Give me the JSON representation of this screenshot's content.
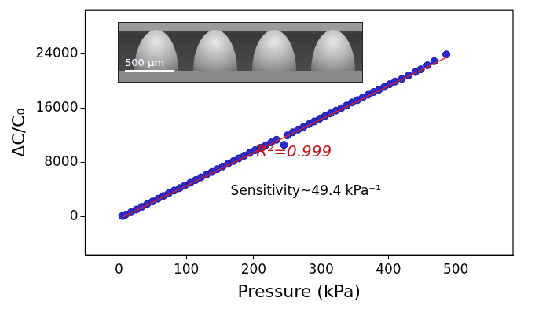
{
  "chart_data": {
    "type": "scatter",
    "x_label": "Pressure (kPa)",
    "y_label": "ΔC/C₀",
    "xlim": [
      -50,
      585
    ],
    "xticks": [
      0,
      100,
      200,
      300,
      400,
      500
    ],
    "ylim": [
      -5700,
      30400
    ],
    "yticks": [
      0,
      8000,
      16000,
      24000
    ],
    "grid": false,
    "annotations": [
      {
        "text": "R²=0.999",
        "color": "#c0141c"
      },
      {
        "text": "Sensitivity~49.4 kPa⁻¹",
        "color": "#000000"
      }
    ],
    "inset": {
      "scale_label": "500 µm"
    },
    "series": [
      {
        "type": "scatter",
        "color": "#2b2bd6",
        "marker": "circle",
        "x": [
          5,
          10,
          18,
          26,
          34,
          42,
          50,
          58,
          66,
          74,
          82,
          90,
          98,
          106,
          114,
          122,
          130,
          138,
          146,
          154,
          162,
          170,
          178,
          186,
          194,
          202,
          210,
          218,
          226,
          234,
          245,
          250,
          258,
          266,
          274,
          282,
          290,
          298,
          306,
          314,
          322,
          330,
          338,
          346,
          354,
          362,
          370,
          378,
          386,
          394,
          402,
          410,
          420,
          430,
          440,
          448,
          458,
          468,
          486
        ],
        "values": [
          50,
          250,
          600,
          1000,
          1400,
          1800,
          2200,
          2600,
          3000,
          3400,
          3800,
          4150,
          4550,
          4950,
          5350,
          5750,
          6150,
          6550,
          6950,
          7350,
          7750,
          8150,
          8550,
          8950,
          9350,
          9750,
          10100,
          10500,
          10900,
          11300,
          10550,
          11950,
          12400,
          12800,
          13200,
          13600,
          14000,
          14400,
          14800,
          15200,
          15600,
          15950,
          16350,
          16800,
          17150,
          17550,
          17950,
          18350,
          18700,
          19100,
          19500,
          19900,
          20300,
          20800,
          21300,
          21700,
          22300,
          22900,
          23900
        ]
      },
      {
        "type": "line",
        "color": "#d62020",
        "line_style": "solid",
        "x": [
          5,
          487
        ],
        "values": [
          -150,
          23500
        ]
      }
    ]
  }
}
